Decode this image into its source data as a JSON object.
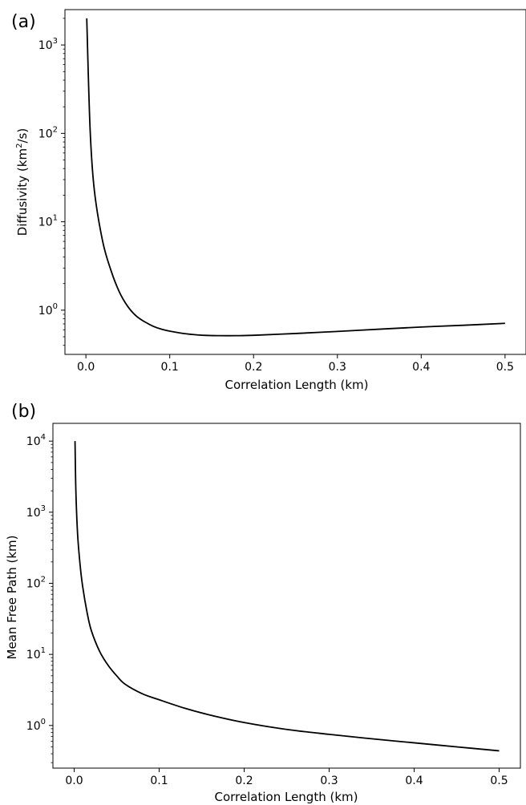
{
  "chart_data": [
    {
      "type": "line",
      "panel_label": "(a)",
      "xlabel": "Correlation Length (km)",
      "ylabel_prefix": "Diffusivity (km",
      "ylabel_sup": "2",
      "ylabel_suffix": "/s)",
      "yscale": "log",
      "xlim": [
        -0.025,
        0.525
      ],
      "ylim_log10": [
        -0.5,
        3.4
      ],
      "xticks": [
        0.0,
        0.1,
        0.2,
        0.3,
        0.4,
        0.5
      ],
      "xtick_labels": [
        "0.0",
        "0.1",
        "0.2",
        "0.3",
        "0.4",
        "0.5"
      ],
      "yticks_log10": [
        0,
        1,
        2,
        3
      ],
      "ytick_bases": [
        "10",
        "10",
        "10",
        "10"
      ],
      "ytick_exps": [
        "0",
        "1",
        "2",
        "3"
      ],
      "grid": false,
      "series": [
        {
          "color": "#000000",
          "x": [
            0.001,
            0.005,
            0.01,
            0.02,
            0.03,
            0.04,
            0.05,
            0.06,
            0.07,
            0.08,
            0.09,
            0.1,
            0.12,
            0.14,
            0.16,
            0.18,
            0.2,
            0.25,
            0.3,
            0.35,
            0.4,
            0.45,
            0.5
          ],
          "y": [
            2000,
            112,
            23,
            6,
            2.8,
            1.6,
            1.1,
            0.86,
            0.74,
            0.66,
            0.61,
            0.58,
            0.54,
            0.52,
            0.515,
            0.515,
            0.52,
            0.545,
            0.575,
            0.61,
            0.645,
            0.675,
            0.71
          ]
        }
      ]
    },
    {
      "type": "line",
      "panel_label": "(b)",
      "xlabel": "Correlation Length (km)",
      "ylabel_prefix": "Mean Free Path (km)",
      "ylabel_sup": "",
      "ylabel_suffix": "",
      "yscale": "log",
      "xlim": [
        -0.025,
        0.525
      ],
      "ylim_log10": [
        -0.6,
        4.25
      ],
      "xticks": [
        0.0,
        0.1,
        0.2,
        0.3,
        0.4,
        0.5
      ],
      "xtick_labels": [
        "0.0",
        "0.1",
        "0.2",
        "0.3",
        "0.4",
        "0.5"
      ],
      "yticks_log10": [
        0,
        1,
        2,
        3,
        4
      ],
      "ytick_bases": [
        "10",
        "10",
        "10",
        "10",
        "10"
      ],
      "ytick_exps": [
        "0",
        "1",
        "2",
        "3",
        "4"
      ],
      "grid": false,
      "series": [
        {
          "color": "#000000",
          "x": [
            0.001,
            0.002,
            0.004,
            0.007,
            0.01,
            0.015,
            0.02,
            0.03,
            0.04,
            0.05,
            0.06,
            0.08,
            0.1,
            0.13,
            0.16,
            0.2,
            0.25,
            0.3,
            0.35,
            0.4,
            0.45,
            0.5
          ],
          "y": [
            10000,
            2000,
            500,
            180,
            90,
            40,
            22,
            11,
            7,
            5,
            3.8,
            2.8,
            2.3,
            1.75,
            1.4,
            1.1,
            0.88,
            0.75,
            0.65,
            0.57,
            0.5,
            0.44
          ]
        }
      ]
    }
  ]
}
